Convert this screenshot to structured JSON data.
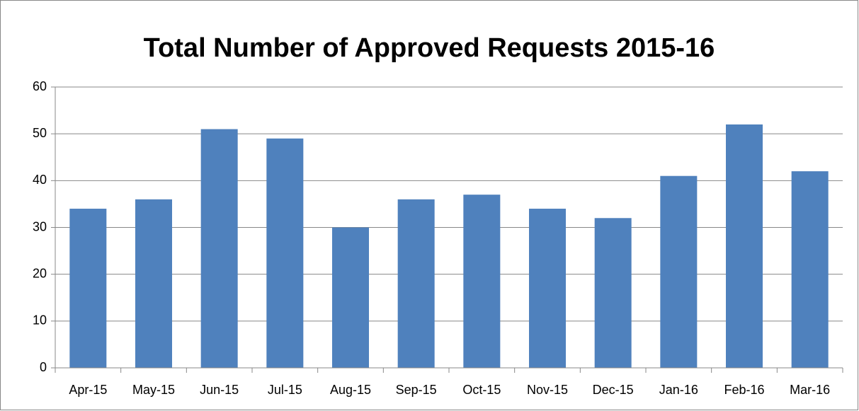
{
  "chart_data": {
    "type": "bar",
    "title": "Total Number of Approved Requests 2015-16",
    "categories": [
      "Apr-15",
      "May-15",
      "Jun-15",
      "Jul-15",
      "Aug-15",
      "Sep-15",
      "Oct-15",
      "Nov-15",
      "Dec-15",
      "Jan-16",
      "Feb-16",
      "Mar-16"
    ],
    "values": [
      34,
      36,
      51,
      49,
      30,
      36,
      37,
      34,
      32,
      41,
      52,
      42
    ],
    "color": "#4f81bd",
    "ylim": [
      0,
      60
    ],
    "yticks": [
      0,
      10,
      20,
      30,
      40,
      50,
      60
    ],
    "grid": true
  }
}
